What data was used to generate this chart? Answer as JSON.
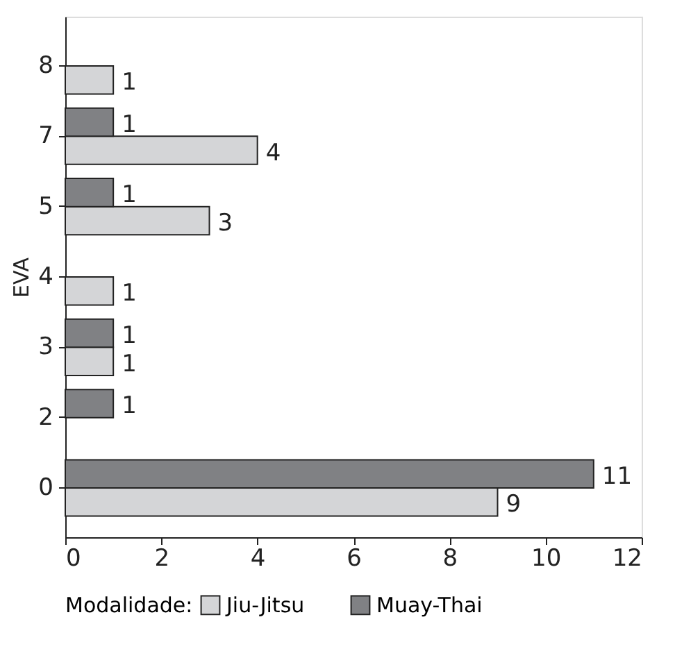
{
  "chart_data": {
    "type": "bar",
    "orientation": "horizontal",
    "ylabel": "EVA",
    "legend_title": "Modalidade:",
    "legend": "bottom",
    "categories": [
      "8",
      "7",
      "5",
      "4",
      "3",
      "2",
      "0"
    ],
    "series": [
      {
        "name": "Jiu-Jitsu",
        "color": "#d4d5d7",
        "values": [
          1,
          4,
          3,
          1,
          1,
          null,
          9
        ]
      },
      {
        "name": "Muay-Thai",
        "color": "#808184",
        "values": [
          null,
          1,
          1,
          null,
          1,
          1,
          11
        ]
      }
    ],
    "xlim": [
      0,
      12
    ],
    "xticks": [
      0,
      2,
      4,
      6,
      8,
      10,
      12
    ],
    "data_labels": true,
    "grid": false
  }
}
